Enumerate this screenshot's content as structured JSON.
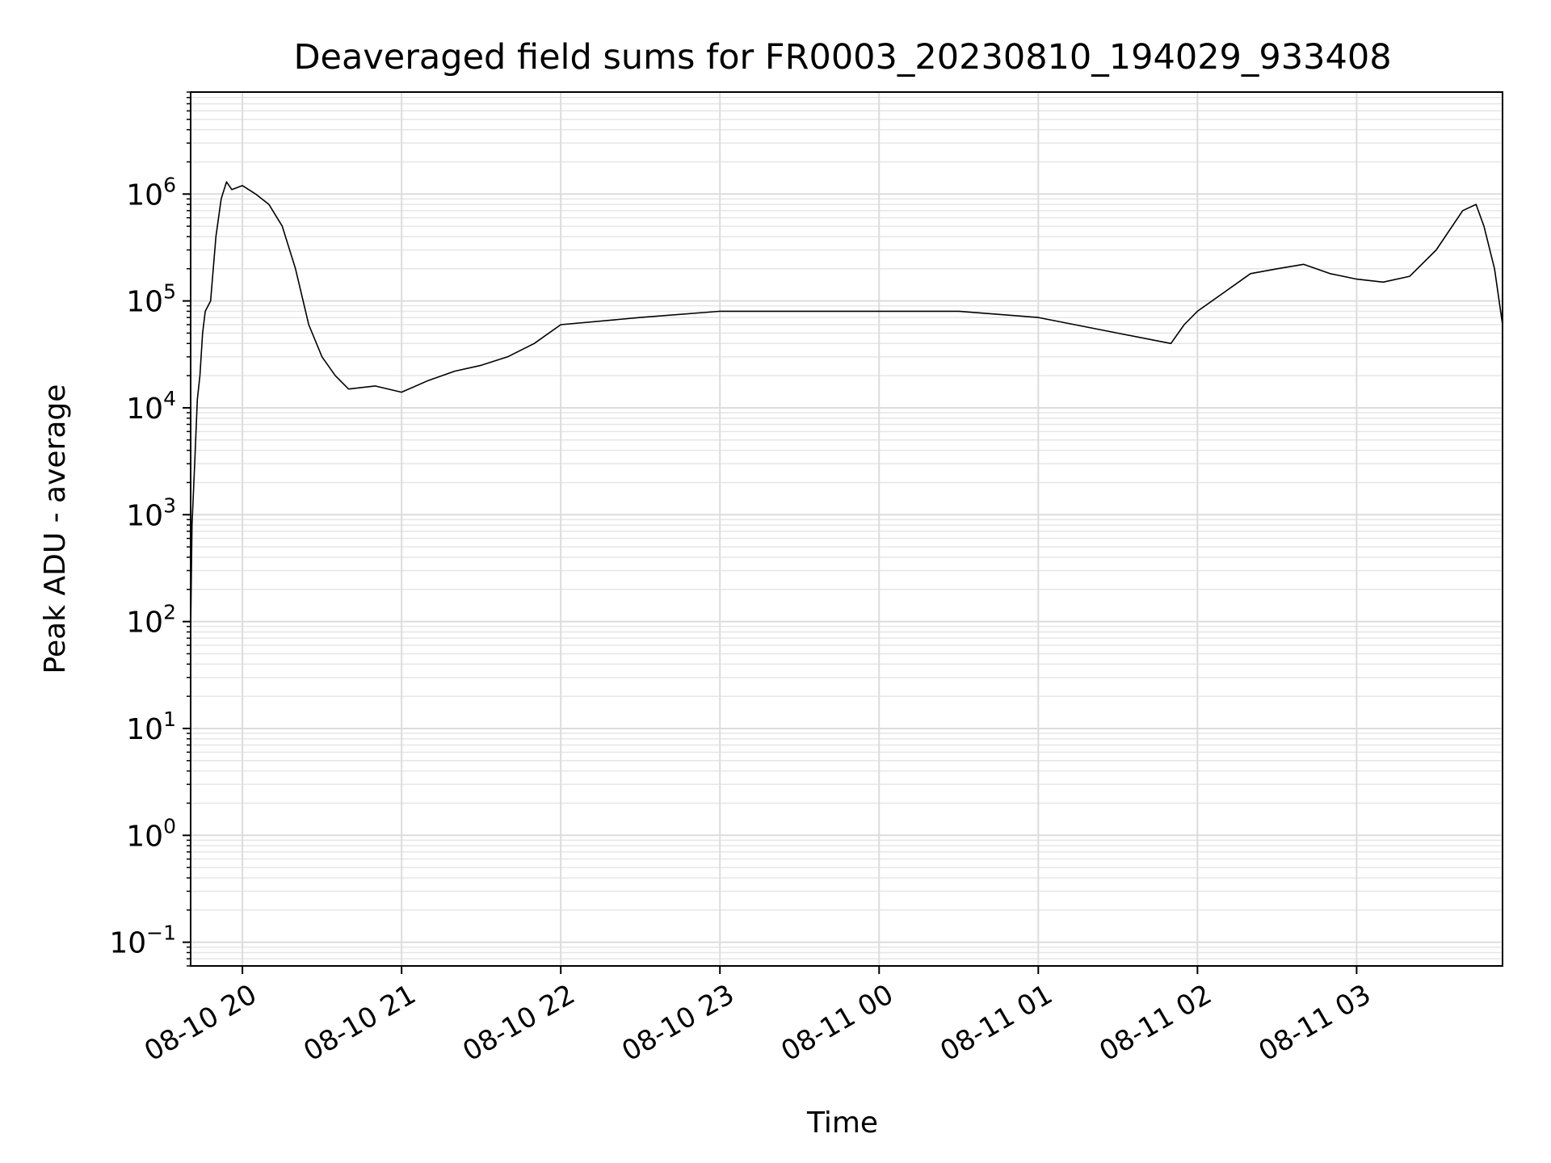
{
  "chart_data": {
    "type": "line",
    "title": "Deaveraged field sums for FR0003_20230810_194029_933408",
    "xlabel": "Time",
    "ylabel": "Peak ADU - average",
    "yscale": "log",
    "ylim": [
      0.06,
      9000000
    ],
    "xlim": [
      "2023-08-10 19:40:29",
      "2023-08-11 03:55:00"
    ],
    "grid": true,
    "x_ticks": [
      {
        "t": "2023-08-10 20:00",
        "label": "08-10 20"
      },
      {
        "t": "2023-08-10 21:00",
        "label": "08-10 21"
      },
      {
        "t": "2023-08-10 22:00",
        "label": "08-10 22"
      },
      {
        "t": "2023-08-10 23:00",
        "label": "08-10 23"
      },
      {
        "t": "2023-08-11 00:00",
        "label": "08-11 00"
      },
      {
        "t": "2023-08-11 01:00",
        "label": "08-11 01"
      },
      {
        "t": "2023-08-11 02:00",
        "label": "08-11 02"
      },
      {
        "t": "2023-08-11 03:00",
        "label": "08-11 03"
      }
    ],
    "y_ticks": [
      {
        "v": 0.1,
        "base": "10",
        "exp": "−1"
      },
      {
        "v": 1,
        "base": "10",
        "exp": "0"
      },
      {
        "v": 10,
        "base": "10",
        "exp": "1"
      },
      {
        "v": 100,
        "base": "10",
        "exp": "2"
      },
      {
        "v": 1000,
        "base": "10",
        "exp": "3"
      },
      {
        "v": 10000,
        "base": "10",
        "exp": "4"
      },
      {
        "v": 100000,
        "base": "10",
        "exp": "5"
      },
      {
        "v": 1000000,
        "base": "10",
        "exp": "6"
      }
    ],
    "series": [
      {
        "color": "#000000",
        "x": [
          "2023-08-10 19:40:29",
          "2023-08-10 19:41:00",
          "2023-08-10 19:42:00",
          "2023-08-10 19:43:00",
          "2023-08-10 19:44:00",
          "2023-08-10 19:45:00",
          "2023-08-10 19:46:00",
          "2023-08-10 19:48:00",
          "2023-08-10 19:50:00",
          "2023-08-10 19:52:00",
          "2023-08-10 19:54:00",
          "2023-08-10 19:56:00",
          "2023-08-10 20:00:00",
          "2023-08-10 20:05:00",
          "2023-08-10 20:10:00",
          "2023-08-10 20:15:00",
          "2023-08-10 20:20:00",
          "2023-08-10 20:25:00",
          "2023-08-10 20:30:00",
          "2023-08-10 20:35:00",
          "2023-08-10 20:40:00",
          "2023-08-10 20:50:00",
          "2023-08-10 21:00:00",
          "2023-08-10 21:10:00",
          "2023-08-10 21:20:00",
          "2023-08-10 21:30:00",
          "2023-08-10 21:40:00",
          "2023-08-10 21:50:00",
          "2023-08-10 22:00:00",
          "2023-08-10 22:30:00",
          "2023-08-10 23:00:00",
          "2023-08-10 23:30:00",
          "2023-08-11 00:00:00",
          "2023-08-11 00:30:00",
          "2023-08-11 01:00:00",
          "2023-08-11 01:30:00",
          "2023-08-11 01:50:00",
          "2023-08-11 01:55:00",
          "2023-08-11 02:00:00",
          "2023-08-11 02:10:00",
          "2023-08-11 02:20:00",
          "2023-08-11 02:30:00",
          "2023-08-11 02:40:00",
          "2023-08-11 02:50:00",
          "2023-08-11 03:00:00",
          "2023-08-11 03:10:00",
          "2023-08-11 03:20:00",
          "2023-08-11 03:30:00",
          "2023-08-11 03:40:00",
          "2023-08-11 03:45:00",
          "2023-08-11 03:48:00",
          "2023-08-11 03:52:00",
          "2023-08-11 03:55:00"
        ],
        "y": [
          80,
          800,
          3000,
          12000,
          20000,
          50000,
          80000,
          100000,
          400000,
          900000,
          1300000,
          1100000,
          1200000,
          1000000,
          800000,
          500000,
          200000,
          60000,
          30000,
          20000,
          15000,
          16000,
          14000,
          18000,
          22000,
          25000,
          30000,
          40000,
          60000,
          70000,
          80000,
          80000,
          80000,
          80000,
          70000,
          50000,
          40000,
          60000,
          80000,
          120000,
          180000,
          200000,
          220000,
          180000,
          160000,
          150000,
          170000,
          300000,
          700000,
          800000,
          500000,
          200000,
          60000
        ]
      }
    ]
  }
}
